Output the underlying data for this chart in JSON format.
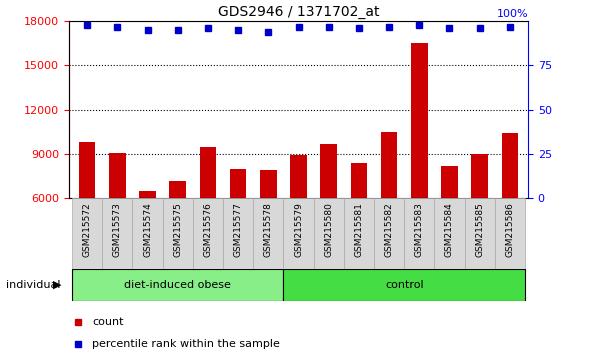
{
  "title": "GDS2946 / 1371702_at",
  "categories": [
    "GSM215572",
    "GSM215573",
    "GSM215574",
    "GSM215575",
    "GSM215576",
    "GSM215577",
    "GSM215578",
    "GSM215579",
    "GSM215580",
    "GSM215581",
    "GSM215582",
    "GSM215583",
    "GSM215584",
    "GSM215585",
    "GSM215586"
  ],
  "bar_values": [
    9800,
    9100,
    6500,
    7200,
    9500,
    8000,
    7900,
    8900,
    9700,
    8400,
    10500,
    16500,
    8200,
    9000,
    10400
  ],
  "percentile_values": [
    98,
    97,
    95,
    95,
    96,
    95,
    94,
    97,
    97,
    96,
    97,
    98,
    96,
    96,
    97
  ],
  "bar_color": "#cc0000",
  "dot_color": "#0000cc",
  "ylim_left": [
    6000,
    18000
  ],
  "ylim_right": [
    0,
    100
  ],
  "yticks_left": [
    6000,
    9000,
    12000,
    15000,
    18000
  ],
  "yticks_right": [
    0,
    25,
    50,
    75
  ],
  "grid_values": [
    9000,
    12000,
    15000,
    18000
  ],
  "groups": [
    {
      "label": "diet-induced obese",
      "start": 0,
      "end": 7,
      "color": "#88ee88"
    },
    {
      "label": "control",
      "start": 7,
      "end": 15,
      "color": "#44dd44"
    }
  ],
  "group_row_label": "individual",
  "legend_items": [
    {
      "label": "count",
      "color": "#cc0000"
    },
    {
      "label": "percentile rank within the sample",
      "color": "#0000cc"
    }
  ],
  "bar_area_bg": "#ffffff",
  "label_box_bg": "#d8d8d8",
  "percentile_marker_size": 5
}
